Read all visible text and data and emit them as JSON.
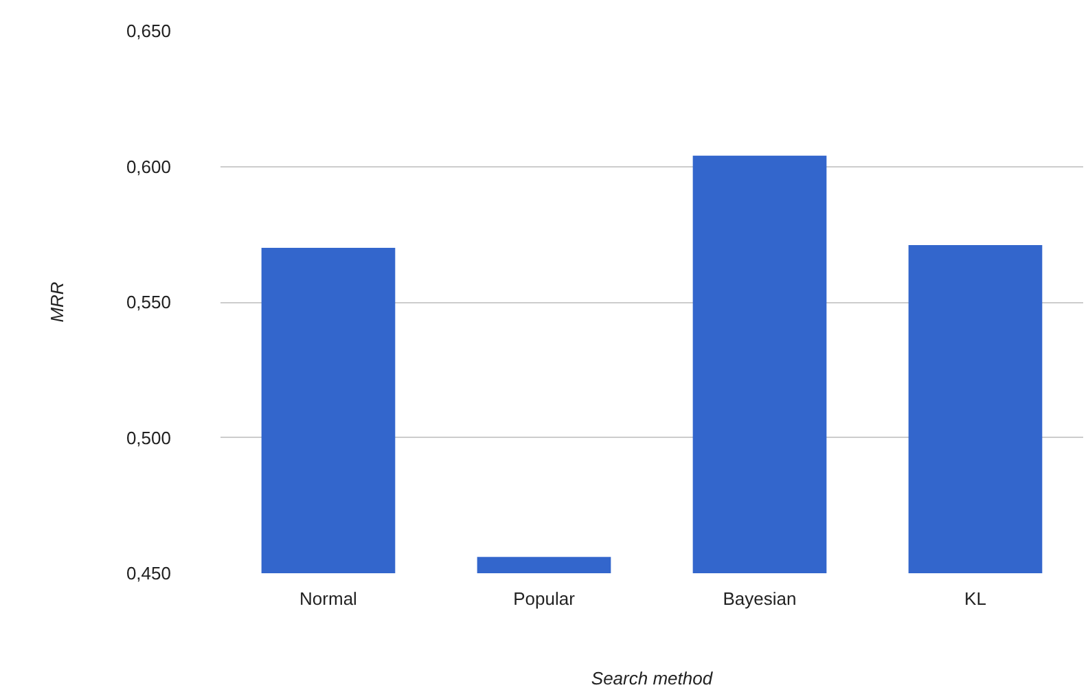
{
  "chart_data": {
    "type": "bar",
    "xlabel": "Search method",
    "ylabel": "MRR",
    "categories": [
      "Normal",
      "Popular",
      "Bayesian",
      "KL"
    ],
    "values": [
      0.57,
      0.456,
      0.604,
      0.571
    ],
    "color": "#3366cc",
    "ylim": [
      0.45,
      0.65
    ],
    "yticks": [
      {
        "value": 0.45,
        "label": "0,450"
      },
      {
        "value": 0.5,
        "label": "0,500"
      },
      {
        "value": 0.55,
        "label": "0,550"
      },
      {
        "value": 0.6,
        "label": "0,600"
      },
      {
        "value": 0.65,
        "label": "0,650"
      }
    ],
    "grid": "y"
  }
}
